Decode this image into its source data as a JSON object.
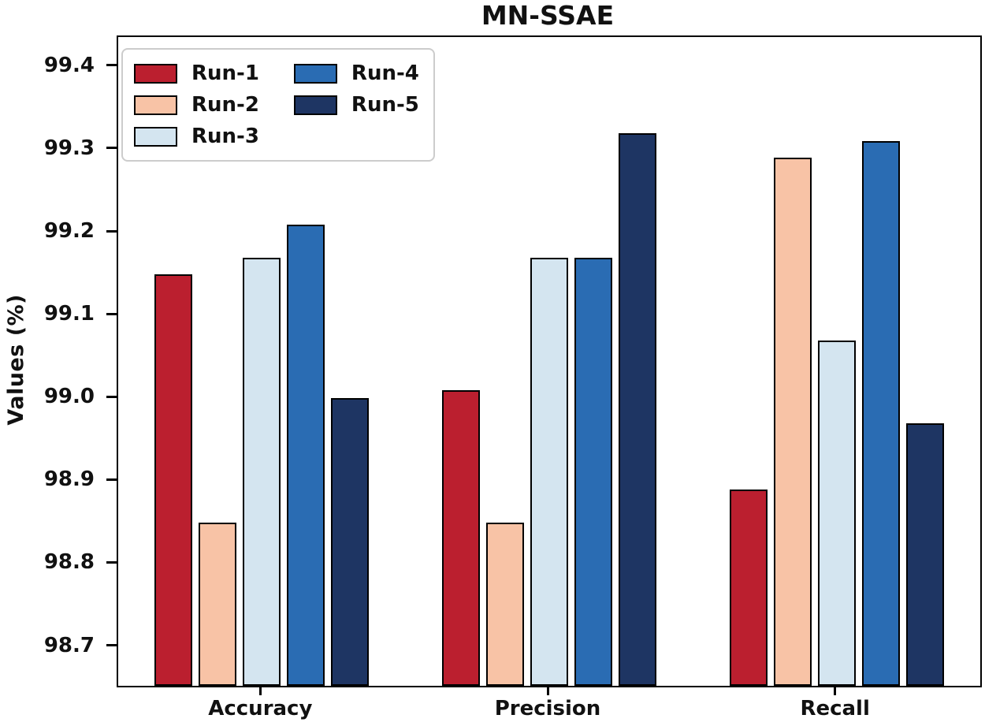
{
  "figure": {
    "background": "#ffffff",
    "text_color": "#111111"
  },
  "chart_data": {
    "type": "bar",
    "title": "MN-SSAE",
    "xlabel": "",
    "ylabel": "Values (%)",
    "categories": [
      "Accuracy",
      "Precision",
      "Recall"
    ],
    "series": [
      {
        "name": "Run-1",
        "color": "#bb1f2f",
        "values": [
          99.15,
          99.01,
          98.89
        ]
      },
      {
        "name": "Run-2",
        "color": "#f8c3a6",
        "values": [
          98.85,
          98.85,
          99.29
        ]
      },
      {
        "name": "Run-3",
        "color": "#d4e5f0",
        "values": [
          99.17,
          99.17,
          99.07
        ]
      },
      {
        "name": "Run-4",
        "color": "#2a6cb3",
        "values": [
          99.21,
          99.17,
          99.31
        ]
      },
      {
        "name": "Run-5",
        "color": "#1e3563",
        "values": [
          99.0,
          99.32,
          98.97
        ]
      }
    ],
    "ylim": [
      98.653,
      99.436
    ],
    "yticks": [
      98.7,
      98.8,
      98.9,
      99.0,
      99.1,
      99.2,
      99.3,
      99.4
    ],
    "ytick_labels": [
      "98.7",
      "98.8",
      "98.9",
      "99.0",
      "99.1",
      "99.2",
      "99.3",
      "99.4"
    ],
    "grid": false,
    "legend_position": "upper-left",
    "legend_columns": 2,
    "bar_edge_color": "#000000"
  }
}
